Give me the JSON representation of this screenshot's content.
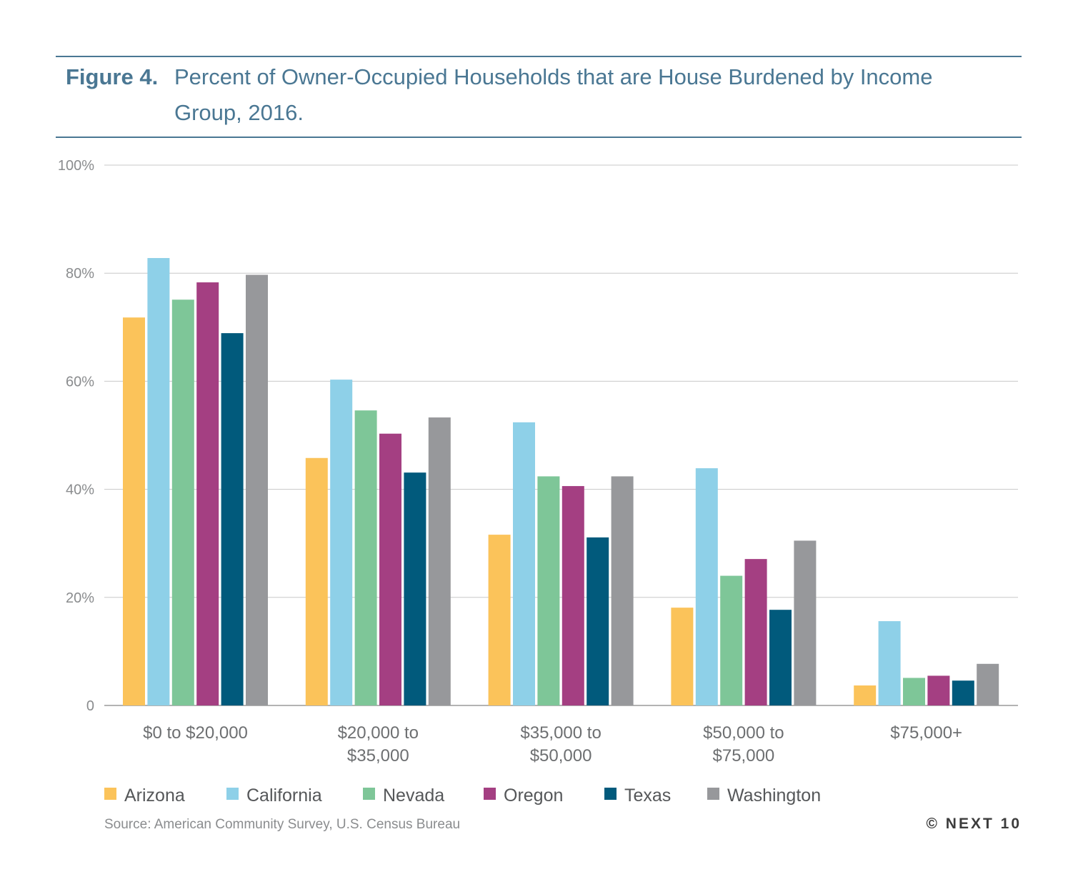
{
  "title": {
    "label": "Figure 4.",
    "text": "Percent of Owner-Occupied Households that are House Burdened by Income Group, 2016."
  },
  "source": "Source: American Community Survey, U.S. Census Bureau",
  "credit": "© NEXT 10",
  "colors": {
    "Arizona": "#fbc35a",
    "California": "#8ed0e8",
    "Nevada": "#7ec698",
    "Oregon": "#a43f82",
    "Texas": "#015a7c",
    "Washington": "#97989b",
    "grid": "#c8c8c8",
    "accent": "#4a7793"
  },
  "chart_data": {
    "type": "bar",
    "categories": [
      [
        "$0 to $20,000"
      ],
      [
        "$20,000 to",
        "$35,000"
      ],
      [
        "$35,000 to",
        "$50,000"
      ],
      [
        "$50,000 to",
        "$75,000"
      ],
      [
        "$75,000+"
      ]
    ],
    "y_ticks": [
      "0",
      "20%",
      "40%",
      "60%",
      "80%",
      "100%"
    ],
    "ylim": [
      0,
      100
    ],
    "legend_position": "bottom",
    "grid": true,
    "series": [
      {
        "name": "Arizona",
        "values": [
          71.8,
          45.8,
          31.6,
          18.1,
          3.7
        ]
      },
      {
        "name": "California",
        "values": [
          82.8,
          60.3,
          52.4,
          43.9,
          15.6
        ]
      },
      {
        "name": "Nevada",
        "values": [
          75.1,
          54.6,
          42.4,
          24.0,
          5.1
        ]
      },
      {
        "name": "Oregon",
        "values": [
          78.3,
          50.3,
          40.6,
          27.1,
          5.5
        ]
      },
      {
        "name": "Texas",
        "values": [
          68.9,
          43.1,
          31.1,
          17.7,
          4.6
        ]
      },
      {
        "name": "Washington",
        "values": [
          79.7,
          53.3,
          42.4,
          30.5,
          7.7
        ]
      }
    ]
  }
}
